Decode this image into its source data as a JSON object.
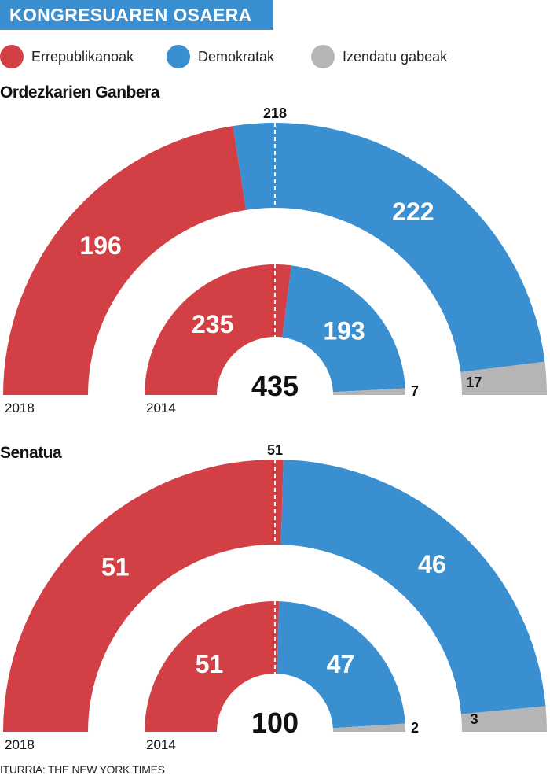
{
  "title": "KONGRESUAREN OSAERA",
  "legend": [
    {
      "label": "Errepublikanoak",
      "color": "#d23f44"
    },
    {
      "label": "Demokratak",
      "color": "#3a8fd0"
    },
    {
      "label": "Izendatu gabeak",
      "color": "#b5b5b5"
    }
  ],
  "source": "ITURRIA: THE NEW YORK TIMES",
  "chart_data": [
    {
      "type": "pie",
      "title": "Ordezkarien Ganbera",
      "total": "435",
      "majority": "218",
      "categories": [
        "Errepublikanoak",
        "Demokratak",
        "Izendatu gabeak"
      ],
      "series": [
        {
          "name": "2018",
          "values": [
            196,
            222,
            17
          ]
        },
        {
          "name": "2014",
          "values": [
            235,
            193,
            7
          ]
        }
      ]
    },
    {
      "type": "pie",
      "title": "Senatua",
      "total": "100",
      "majority": "51",
      "categories": [
        "Errepublikanoak",
        "Demokratak",
        "Izendatu gabeak"
      ],
      "series": [
        {
          "name": "2018",
          "values": [
            51,
            46,
            3
          ]
        },
        {
          "name": "2014",
          "values": [
            51,
            47,
            2
          ]
        }
      ]
    }
  ]
}
